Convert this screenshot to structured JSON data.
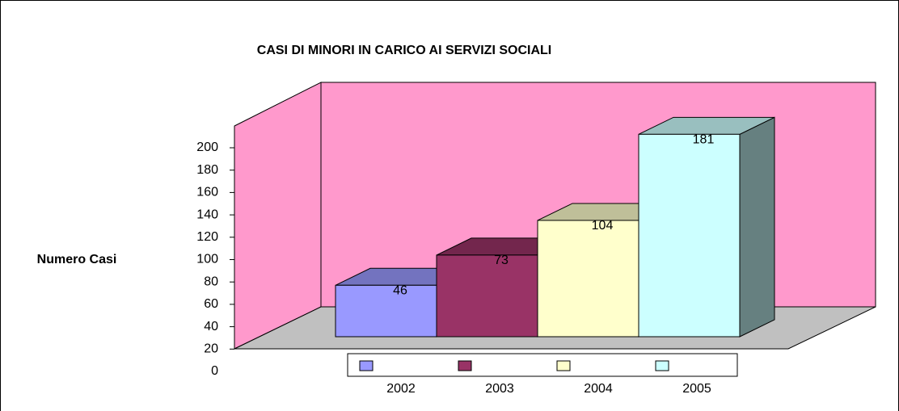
{
  "chart_data": {
    "type": "bar3d",
    "title": "CASI DI MINORI IN CARICO AI SERVIZI SOCIALI",
    "y_label": "Numero Casi",
    "categories": [
      "2002",
      "2003",
      "2004",
      "2005"
    ],
    "values": [
      46,
      73,
      104,
      181
    ],
    "colors": [
      "#9999ff",
      "#993366",
      "#ffffcc",
      "#ccffff"
    ],
    "ylim": [
      0,
      200
    ],
    "yticks": [
      0,
      20,
      40,
      60,
      80,
      100,
      120,
      140,
      160,
      180,
      200
    ]
  }
}
